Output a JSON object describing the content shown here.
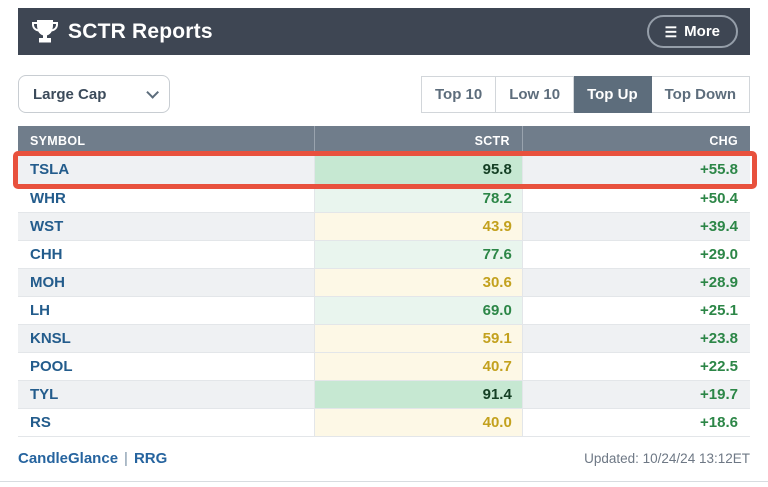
{
  "header": {
    "title": "SCTR Reports",
    "more_label": "More"
  },
  "controls": {
    "dropdown_value": "Large Cap",
    "filters": [
      {
        "label": "Top 10",
        "selected": false
      },
      {
        "label": "Low 10",
        "selected": false
      },
      {
        "label": "Top Up",
        "selected": true
      },
      {
        "label": "Top Down",
        "selected": false
      }
    ]
  },
  "table": {
    "columns": [
      "SYMBOL",
      "SCTR",
      "CHG"
    ],
    "rows": [
      {
        "symbol": "TSLA",
        "sctr": "95.8",
        "chg": "+55.8",
        "highlighted": true
      },
      {
        "symbol": "WHR",
        "sctr": "78.2",
        "chg": "+50.4",
        "highlighted": false
      },
      {
        "symbol": "WST",
        "sctr": "43.9",
        "chg": "+39.4",
        "highlighted": false
      },
      {
        "symbol": "CHH",
        "sctr": "77.6",
        "chg": "+29.0",
        "highlighted": false
      },
      {
        "symbol": "MOH",
        "sctr": "30.6",
        "chg": "+28.9",
        "highlighted": false
      },
      {
        "symbol": "LH",
        "sctr": "69.0",
        "chg": "+25.1",
        "highlighted": false
      },
      {
        "symbol": "KNSL",
        "sctr": "59.1",
        "chg": "+23.8",
        "highlighted": false
      },
      {
        "symbol": "POOL",
        "sctr": "40.7",
        "chg": "+22.5",
        "highlighted": false
      },
      {
        "symbol": "TYL",
        "sctr": "91.4",
        "chg": "+19.7",
        "highlighted": false
      },
      {
        "symbol": "RS",
        "sctr": "40.0",
        "chg": "+18.6",
        "highlighted": false
      }
    ]
  },
  "footer": {
    "links": [
      "CandleGlance",
      "RRG"
    ],
    "separator": "|",
    "updated": "Updated: 10/24/24 13:12ET"
  },
  "colors": {
    "header_bg": "#3e4653",
    "table_header_bg": "#707d8b",
    "selected_filter_bg": "#5d6d7c",
    "highlight_border": "#e8513d",
    "sctr_high_bg": "#c6e8d2",
    "sctr_mid_bg": "#e9f5ee",
    "sctr_low_bg": "#fdf8e6",
    "sctr_high_text": "#143f24",
    "sctr_mid_text": "#2c8647",
    "sctr_low_text": "#c3a11e",
    "chg_text": "#2c8647",
    "symbol_text": "#235c8c"
  }
}
